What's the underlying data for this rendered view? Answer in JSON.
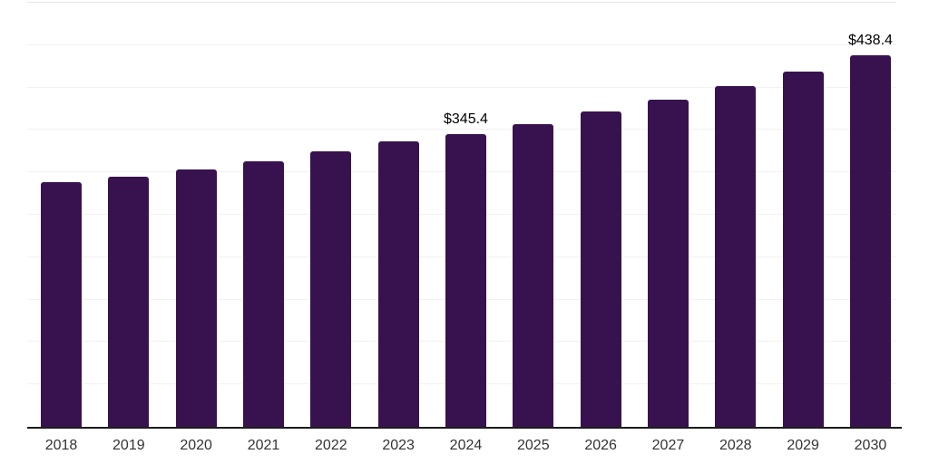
{
  "chart_data": {
    "type": "bar",
    "title": "",
    "xlabel": "",
    "ylabel": "",
    "categories": [
      "2018",
      "2019",
      "2020",
      "2021",
      "2022",
      "2023",
      "2024",
      "2025",
      "2026",
      "2027",
      "2028",
      "2029",
      "2030"
    ],
    "values": [
      288.6,
      295.3,
      303.5,
      313.4,
      325.1,
      336.5,
      345.4,
      357.1,
      372.0,
      385.2,
      401.2,
      418.9,
      438.4
    ],
    "data_labels": {
      "2024": "$345.4",
      "2030": "$438.4"
    },
    "ylim": [
      0,
      500
    ],
    "gridline_step": 50,
    "grid": true,
    "legend": false,
    "colors": {
      "bar": "#38124E",
      "axis_line": "#1c1c1c",
      "gridline": "#f2f2f4",
      "top_gridline": "#e8e8ee",
      "value_label": "#000000",
      "tick_label": "#333333",
      "background": "#ffffff"
    }
  }
}
